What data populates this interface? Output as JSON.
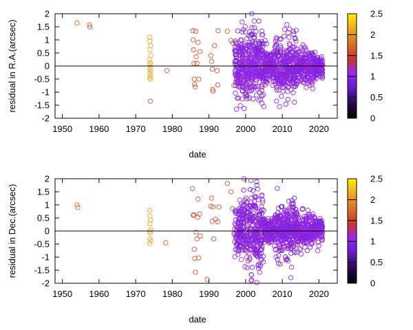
{
  "chart_data": [
    {
      "type": "scatter",
      "xlabel": "date",
      "ylabel": "residual in R.A.(arcsec)",
      "xlim": [
        1948,
        2025
      ],
      "ylim": [
        -2,
        2
      ],
      "xticks": [
        1950,
        1960,
        1970,
        1980,
        1990,
        2000,
        2010,
        2020
      ],
      "yticks": [
        -2,
        -1.5,
        -1,
        -0.5,
        0,
        0.5,
        1,
        1.5,
        2
      ],
      "grid": false,
      "zero_line": true,
      "marker": "open-circle",
      "color_scale": {
        "range": [
          0,
          2.5
        ],
        "ticks": [
          0,
          0.5,
          1,
          1.5,
          2,
          2.5
        ],
        "stops": [
          {
            "v": 0.0,
            "color": "#000000"
          },
          {
            "v": 0.4,
            "color": "#2e0a5a"
          },
          {
            "v": 0.8,
            "color": "#6d1ed8"
          },
          {
            "v": 1.1,
            "color": "#9b28f2"
          },
          {
            "v": 1.4,
            "color": "#c83232"
          },
          {
            "v": 1.8,
            "color": "#d8742a"
          },
          {
            "v": 2.2,
            "color": "#f0b020"
          },
          {
            "v": 2.5,
            "color": "#fff000"
          }
        ]
      },
      "groups": [
        {
          "era": "1954-1957",
          "color_value": 1.7,
          "points": [
            [
              1954.0,
              1.65
            ],
            [
              1957.4,
              1.58
            ],
            [
              1957.5,
              1.49
            ]
          ]
        },
        {
          "era": "1974",
          "color_value": 2.15,
          "points": [
            [
              1973.8,
              1.1
            ],
            [
              1973.9,
              0.95
            ],
            [
              1974.0,
              0.78
            ],
            [
              1973.9,
              0.62
            ],
            [
              1974.1,
              0.4
            ],
            [
              1973.8,
              0.25
            ],
            [
              1974.0,
              0.12
            ],
            [
              1973.9,
              0.05
            ],
            [
              1974.1,
              -0.05
            ],
            [
              1973.8,
              -0.12
            ],
            [
              1974.0,
              -0.2
            ],
            [
              1973.9,
              -0.3
            ],
            [
              1974.1,
              -0.38
            ],
            [
              1973.8,
              -0.45
            ],
            [
              1974.0,
              -0.5
            ]
          ]
        },
        {
          "era": "1974-late",
          "color_value": 1.6,
          "points": [
            [
              1974.0,
              -1.35
            ]
          ]
        },
        {
          "era": "1978-1997",
          "color_value": 1.6,
          "points": [
            [
              1978.5,
              -0.18
            ],
            [
              1985.6,
              1.35
            ],
            [
              1985.7,
              1.0
            ],
            [
              1985.8,
              0.62
            ],
            [
              1985.9,
              0.1
            ],
            [
              1986.0,
              -0.5
            ],
            [
              1986.1,
              -0.7
            ],
            [
              1986.2,
              -0.8
            ],
            [
              1986.4,
              1.33
            ],
            [
              1986.5,
              0.35
            ],
            [
              1986.7,
              0.1
            ],
            [
              1987.0,
              0.9
            ],
            [
              1987.2,
              -0.5
            ],
            [
              1987.5,
              0.55
            ],
            [
              1990.5,
              0.4
            ],
            [
              1990.7,
              0.18
            ],
            [
              1990.9,
              -0.12
            ],
            [
              1991.0,
              -0.9
            ],
            [
              1991.1,
              -0.97
            ],
            [
              1991.5,
              0.78
            ],
            [
              1992.2,
              -0.18
            ],
            [
              1992.4,
              -0.72
            ],
            [
              1992.5,
              1.35
            ],
            [
              1995.0,
              1.33
            ],
            [
              1996.0,
              0.98
            ],
            [
              1996.5,
              0.88
            ],
            [
              1996.8,
              -0.75
            ]
          ]
        }
      ],
      "dense_region": {
        "x_range": [
          1997,
          2021
        ],
        "y_spread": 2,
        "color_range": [
          0.8,
          1.2
        ],
        "approx_points": 1200
      }
    },
    {
      "type": "scatter",
      "xlabel": "date",
      "ylabel": "residual in Dec.(arcsec)",
      "xlim": [
        1948,
        2025
      ],
      "ylim": [
        -2,
        2
      ],
      "xticks": [
        1950,
        1960,
        1970,
        1980,
        1990,
        2000,
        2010,
        2020
      ],
      "yticks": [
        -2,
        -1.5,
        -1,
        -0.5,
        0,
        0.5,
        1,
        1.5,
        2
      ],
      "grid": false,
      "zero_line": true,
      "marker": "open-circle",
      "color_scale": {
        "range": [
          0,
          2.5
        ],
        "ticks": [
          0,
          0.5,
          1,
          1.5,
          2,
          2.5
        ],
        "stops": [
          {
            "v": 0.0,
            "color": "#000000"
          },
          {
            "v": 0.4,
            "color": "#2e0a5a"
          },
          {
            "v": 0.8,
            "color": "#6d1ed8"
          },
          {
            "v": 1.1,
            "color": "#9b28f2"
          },
          {
            "v": 1.4,
            "color": "#c83232"
          },
          {
            "v": 1.8,
            "color": "#d8742a"
          },
          {
            "v": 2.2,
            "color": "#f0b020"
          },
          {
            "v": 2.5,
            "color": "#fff000"
          }
        ]
      },
      "groups": [
        {
          "era": "1954",
          "color_value": 1.7,
          "points": [
            [
              1954.0,
              1.0
            ],
            [
              1954.2,
              0.9
            ]
          ]
        },
        {
          "era": "1974",
          "color_value": 2.15,
          "points": [
            [
              1973.8,
              0.8
            ],
            [
              1973.9,
              0.58
            ],
            [
              1974.0,
              0.42
            ],
            [
              1973.9,
              0.28
            ],
            [
              1974.1,
              0.05
            ],
            [
              1973.8,
              -0.02
            ],
            [
              1974.0,
              -0.08
            ],
            [
              1973.9,
              -0.3
            ],
            [
              1974.1,
              -0.38
            ],
            [
              1973.8,
              -0.48
            ]
          ]
        },
        {
          "era": "1978-1997",
          "color_value": 1.6,
          "points": [
            [
              1978.2,
              -0.45
            ],
            [
              1985.5,
              1.62
            ],
            [
              1985.7,
              0.6
            ],
            [
              1985.9,
              0.62
            ],
            [
              1986.0,
              -0.7
            ],
            [
              1986.1,
              -1.05
            ],
            [
              1986.3,
              -1.58
            ],
            [
              1986.5,
              -0.05
            ],
            [
              1986.7,
              -0.3
            ],
            [
              1986.9,
              0.52
            ],
            [
              1987.0,
              1.22
            ],
            [
              1987.2,
              -1.03
            ],
            [
              1987.4,
              0.65
            ],
            [
              1987.6,
              -0.2
            ],
            [
              1989.5,
              -1.85
            ],
            [
              1990.5,
              0.95
            ],
            [
              1990.7,
              1.26
            ],
            [
              1990.9,
              0.37
            ],
            [
              1991.1,
              0.92
            ],
            [
              1991.3,
              -0.3
            ],
            [
              1991.8,
              0.45
            ],
            [
              1992.4,
              0.35
            ],
            [
              1992.7,
              0.92
            ],
            [
              1995.0,
              1.82
            ],
            [
              1996.0,
              1.5
            ],
            [
              1996.4,
              0.85
            ],
            [
              1996.8,
              -0.1
            ]
          ]
        }
      ],
      "dense_region": {
        "x_range": [
          1997,
          2021
        ],
        "y_spread": 2,
        "color_range": [
          0.8,
          1.2
        ],
        "approx_points": 1200
      }
    }
  ]
}
